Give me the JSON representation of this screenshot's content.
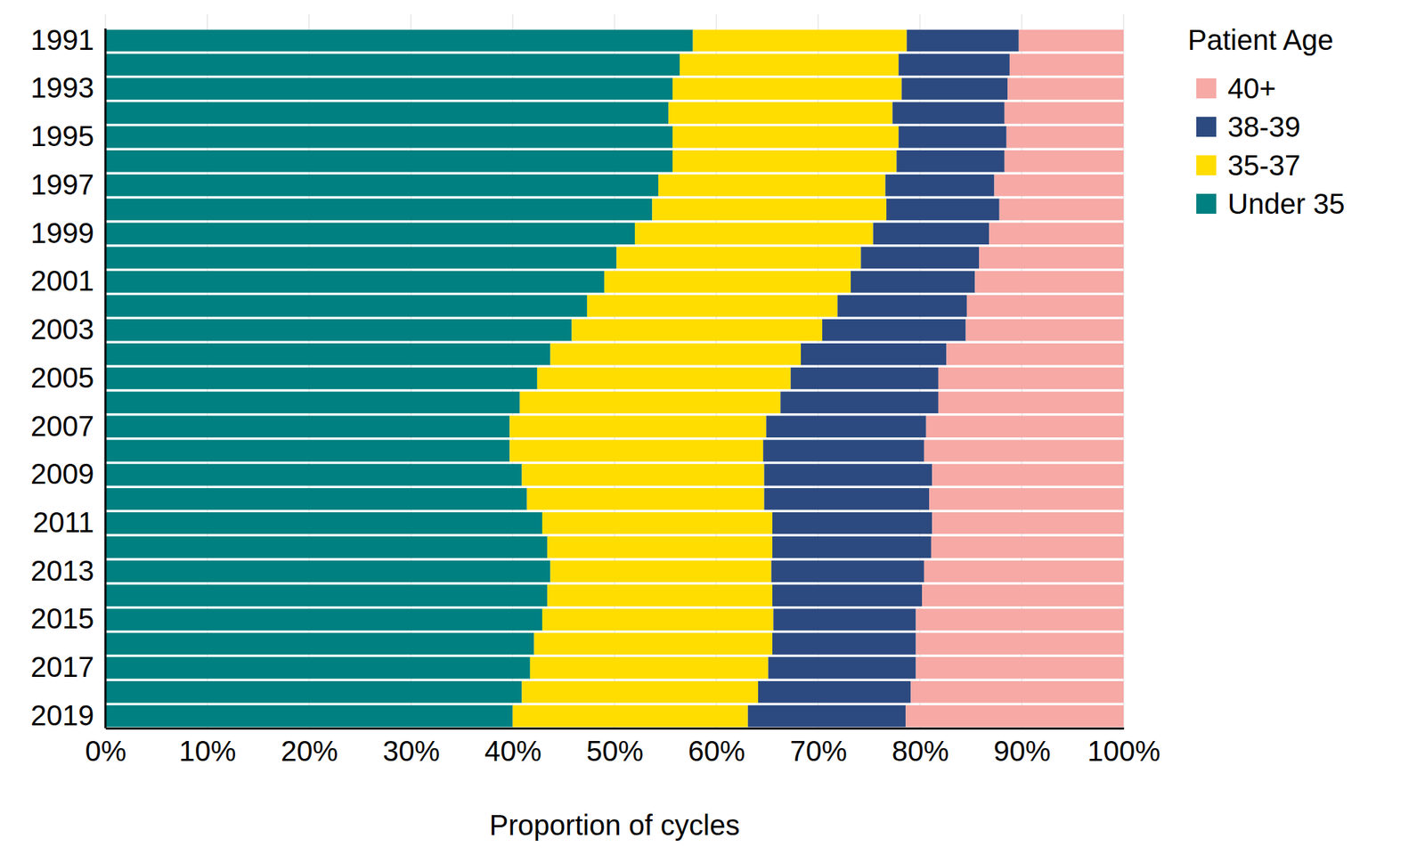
{
  "chart_data": {
    "type": "bar",
    "orientation": "horizontal",
    "stacked": true,
    "grid": true,
    "legend": "right",
    "legend_title": "Patient Age",
    "x_label": "Proportion of cycles",
    "categories": [
      "1991",
      null,
      "1993",
      null,
      "1995",
      null,
      "1997",
      null,
      "1999",
      null,
      "2001",
      null,
      "2003",
      null,
      "2005",
      null,
      "2007",
      null,
      "2009",
      null,
      "2011",
      null,
      "2013",
      null,
      "2015",
      null,
      "2017",
      null,
      "2019"
    ],
    "xlim": [
      0,
      100
    ],
    "xticks": [
      {
        "value": 0,
        "label": "0%"
      },
      {
        "value": 10,
        "label": "10%"
      },
      {
        "value": 20,
        "label": "20%"
      },
      {
        "value": 30,
        "label": "30%"
      },
      {
        "value": 40,
        "label": "40%"
      },
      {
        "value": 50,
        "label": "50%"
      },
      {
        "value": 60,
        "label": "60%"
      },
      {
        "value": 70,
        "label": "70%"
      },
      {
        "value": 80,
        "label": "80%"
      },
      {
        "value": 90,
        "label": "90%"
      },
      {
        "value": 100,
        "label": "100%"
      }
    ],
    "series": [
      {
        "name": "Under 35",
        "color": "#008080",
        "values": [
          57.7,
          56.4,
          55.7,
          55.3,
          55.7,
          55.7,
          54.3,
          53.7,
          52.0,
          50.2,
          49.0,
          47.3,
          45.8,
          43.7,
          42.4,
          40.7,
          39.7,
          39.7,
          40.9,
          41.4,
          42.9,
          43.4,
          43.7,
          43.4,
          42.9,
          42.1,
          41.7,
          40.9,
          40.0
        ]
      },
      {
        "name": "35-37",
        "color": "#ffdd00",
        "values": [
          21.0,
          21.5,
          22.5,
          22.0,
          22.2,
          22.0,
          22.3,
          23.0,
          23.4,
          24.0,
          24.2,
          24.6,
          24.6,
          24.6,
          24.9,
          25.6,
          25.2,
          24.9,
          23.8,
          23.3,
          22.6,
          22.1,
          21.7,
          22.1,
          22.7,
          23.4,
          23.4,
          23.2,
          23.1
        ]
      },
      {
        "name": "38-39",
        "color": "#2c4a80",
        "values": [
          11.0,
          10.9,
          10.4,
          11.0,
          10.6,
          10.6,
          10.7,
          11.1,
          11.4,
          11.6,
          12.2,
          12.7,
          14.1,
          14.3,
          14.5,
          15.5,
          15.7,
          15.8,
          16.5,
          16.2,
          15.7,
          15.6,
          15.0,
          14.7,
          14.0,
          14.1,
          14.5,
          15.0,
          15.5
        ]
      },
      {
        "name": "40+",
        "color": "#f6a9a5",
        "values": [
          10.3,
          11.2,
          11.4,
          11.7,
          11.5,
          11.7,
          12.7,
          12.2,
          13.2,
          14.2,
          14.6,
          15.4,
          15.5,
          17.4,
          18.2,
          18.2,
          19.4,
          19.6,
          18.8,
          19.1,
          18.8,
          18.9,
          19.6,
          19.8,
          20.4,
          20.4,
          20.4,
          20.9,
          21.4
        ]
      }
    ]
  }
}
